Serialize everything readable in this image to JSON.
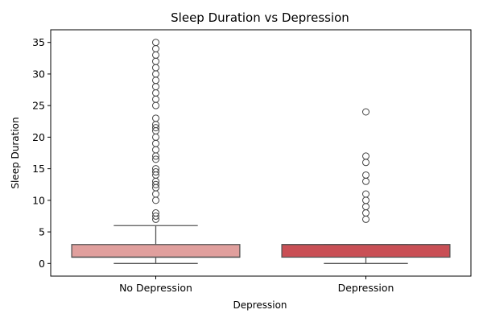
{
  "chart_data": {
    "type": "boxplot",
    "title": "Sleep Duration vs Depression",
    "xlabel": "Depression",
    "ylabel": "Sleep Duration",
    "categories": [
      "No Depression",
      "Depression"
    ],
    "ylim": [
      -2,
      37
    ],
    "yticks": [
      0,
      5,
      10,
      15,
      20,
      25,
      30,
      35
    ],
    "grid": false,
    "series": [
      {
        "name": "No Depression",
        "color": "#e09f9d",
        "whisker_low": 0,
        "q1": 1,
        "median": 1,
        "q3": 3,
        "whisker_high": 6,
        "outliers": [
          7,
          7.5,
          8,
          10,
          11,
          12,
          12.5,
          13,
          14,
          14.5,
          15,
          16.5,
          17,
          18,
          19,
          20,
          21,
          21.5,
          22,
          23,
          25,
          26,
          27,
          28,
          29,
          30,
          31,
          32,
          33,
          34,
          35
        ]
      },
      {
        "name": "Depression",
        "color": "#c94f55",
        "whisker_low": 0,
        "q1": 1,
        "median": 3,
        "q3": 3,
        "whisker_high": 3,
        "outliers": [
          7,
          8,
          9,
          10,
          11,
          13,
          14,
          16,
          17,
          24
        ]
      }
    ]
  }
}
